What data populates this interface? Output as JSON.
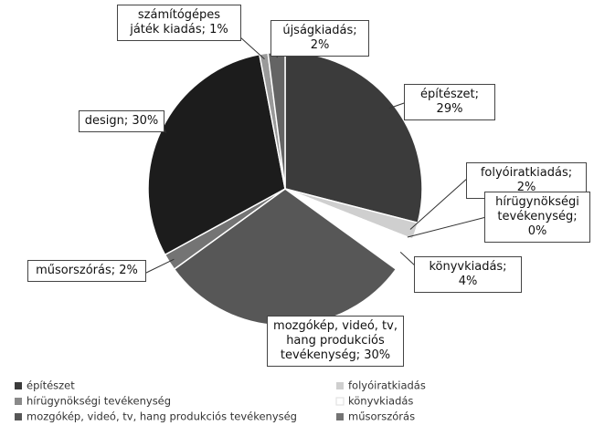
{
  "chart_data": {
    "type": "pie",
    "categories": [
      "építészet",
      "folyóiratkiadás",
      "hírügynökségi tevékenység",
      "könyvkiadás",
      "mozgókép, videó, tv, hang produkciós tevékenység",
      "műsorszórás",
      "design",
      "számítógépes játék kiadás",
      "újságkiadás"
    ],
    "values": [
      29,
      2,
      0,
      4,
      30,
      2,
      30,
      1,
      2
    ],
    "value_labels": [
      "építészet; 29%",
      "folyóiratkiadás; 2%",
      "hírügynökségi tevékenység; 0%",
      "könyvkiadás; 4%",
      "mozgókép, videó, tv, hang produkciós tevékenység; 30%",
      "műsorszórás; 2%",
      "design; 30%",
      "számítógépes játék kiadás; 1%",
      "újságkiadás; 2%"
    ],
    "colors": [
      "#3b3b3b",
      "#cfcfcf",
      "#8a8a8a",
      "#ffffff",
      "#575757",
      "#747474",
      "#1c1c1c",
      "#9a9a9a",
      "#646464"
    ],
    "legend": "bottom"
  }
}
